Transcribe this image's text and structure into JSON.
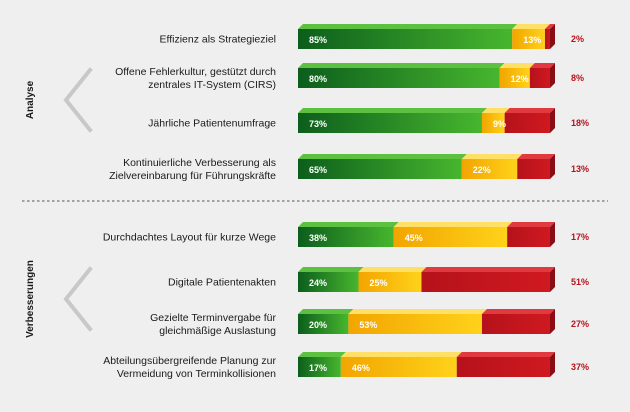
{
  "chart_data": {
    "type": "bar",
    "stacked": true,
    "orientation": "horizontal",
    "segment_colors": [
      "#1f8a2a",
      "#f5b800",
      "#b5121b"
    ],
    "groups": [
      {
        "name": "Analyse",
        "items": [
          {
            "label": [
              "Effizienz als Strategieziel"
            ],
            "values": [
              85,
              13,
              2
            ]
          },
          {
            "label": [
              "Offene Fehlerkultur, gestützt durch",
              "zentrales IT-System (CIRS)"
            ],
            "values": [
              80,
              12,
              8
            ]
          },
          {
            "label": [
              "Jährliche Patientenumfrage"
            ],
            "values": [
              73,
              9,
              18
            ]
          },
          {
            "label": [
              "Kontinuierliche Verbesserung als",
              "Zielvereinbarung für Führungskräfte"
            ],
            "values": [
              65,
              22,
              13
            ]
          }
        ]
      },
      {
        "name": "Verbesserungen",
        "items": [
          {
            "label": [
              "Durchdachtes Layout für kurze Wege"
            ],
            "values": [
              38,
              45,
              17
            ]
          },
          {
            "label": [
              "Digitale Patientenakten"
            ],
            "values": [
              24,
              25,
              51
            ]
          },
          {
            "label": [
              "Gezielte Terminvergabe für",
              "gleichmäßige Auslastung"
            ],
            "values": [
              20,
              53,
              27
            ]
          },
          {
            "label": [
              "Abteilungsübergreifende Planung zur",
              "Vermeidung von Terminkollisionen"
            ],
            "values": [
              17,
              46,
              37
            ]
          }
        ]
      }
    ]
  }
}
